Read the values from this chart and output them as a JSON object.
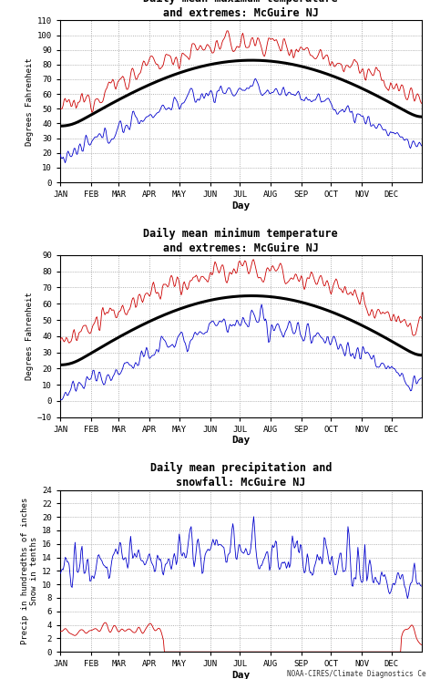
{
  "title1": "Daily mean maximum temperature\nand extremes: McGuire NJ",
  "title2": "Daily mean minimum temperature\nand extremes: McGuire NJ",
  "title3": "Daily mean precipitation and\nsnowfall: McGuire NJ",
  "xlabel": "Day",
  "ylabel1": "Degrees Fahrenheit",
  "ylabel2": "Degrees Fahrenheit",
  "ylabel3": "Precip in hundredths of inches\nSnow in tenths",
  "months": [
    "JAN",
    "FEB",
    "MAR",
    "APR",
    "MAY",
    "JUN",
    "JUL",
    "AUG",
    "SEP",
    "OCT",
    "NOV",
    "DEC"
  ],
  "panel1_ylim": [
    0,
    110
  ],
  "panel1_yticks": [
    0,
    10,
    20,
    30,
    40,
    50,
    60,
    70,
    80,
    90,
    100,
    110
  ],
  "panel2_ylim": [
    -10,
    90
  ],
  "panel2_yticks": [
    -10,
    0,
    10,
    20,
    30,
    40,
    50,
    60,
    70,
    80,
    90
  ],
  "panel3_ylim": [
    0,
    24
  ],
  "panel3_yticks": [
    0,
    2,
    4,
    6,
    8,
    10,
    12,
    14,
    16,
    18,
    20,
    22,
    24
  ],
  "bg_color": "#ffffff",
  "line_color_mean": "#000000",
  "line_color_record_high": "#cc0000",
  "line_color_record_low": "#0000cc",
  "grid_color": "#aaaaaa",
  "footer": "NOAA-CIRES/Climate Diagnostics Ce"
}
